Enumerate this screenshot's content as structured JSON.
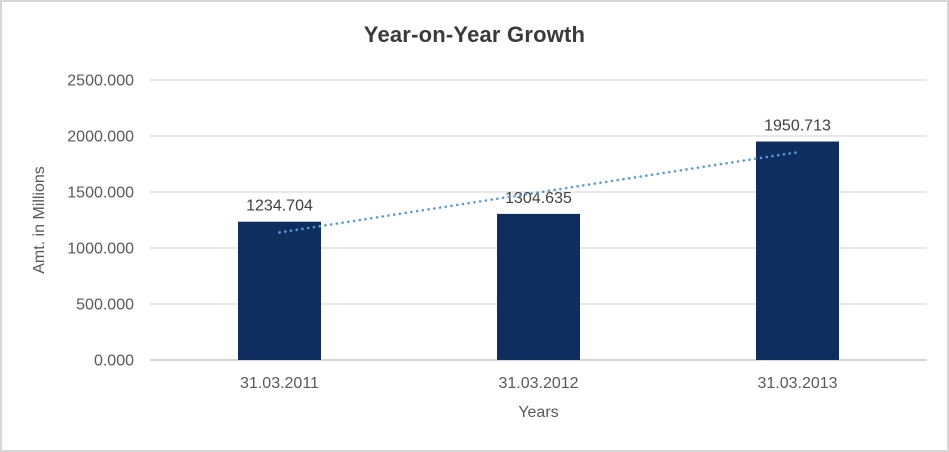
{
  "chart_data": {
    "type": "bar",
    "title": "Year-on-Year Growth",
    "xlabel": "Years",
    "ylabel": "Amt. in Millions",
    "categories": [
      "31.03.2011",
      "31.03.2012",
      "31.03.2013"
    ],
    "values": [
      1234.704,
      1304.635,
      1950.713
    ],
    "data_labels": [
      "1234.704",
      "1304.635",
      "1950.713"
    ],
    "y_ticks": [
      "0.000",
      "500.000",
      "1000.000",
      "1500.000",
      "2000.000",
      "2500.000"
    ],
    "y_tick_values": [
      0,
      500,
      1000,
      1500,
      2000,
      2500
    ],
    "ylim": [
      0,
      2500
    ],
    "grid": true,
    "legend": "none",
    "trendline": {
      "type": "linear",
      "style": "dotted"
    },
    "colors": {
      "bar": "#0f2e60",
      "trendline": "#5b9bd5",
      "gridline": "#d9d9d9",
      "axis_line": "#bfbfbf",
      "title_text": "#3a3a3a",
      "tick_text": "#595959",
      "label_text": "#404040",
      "frame_border": "#d6d6d6",
      "background": "#ffffff"
    }
  }
}
